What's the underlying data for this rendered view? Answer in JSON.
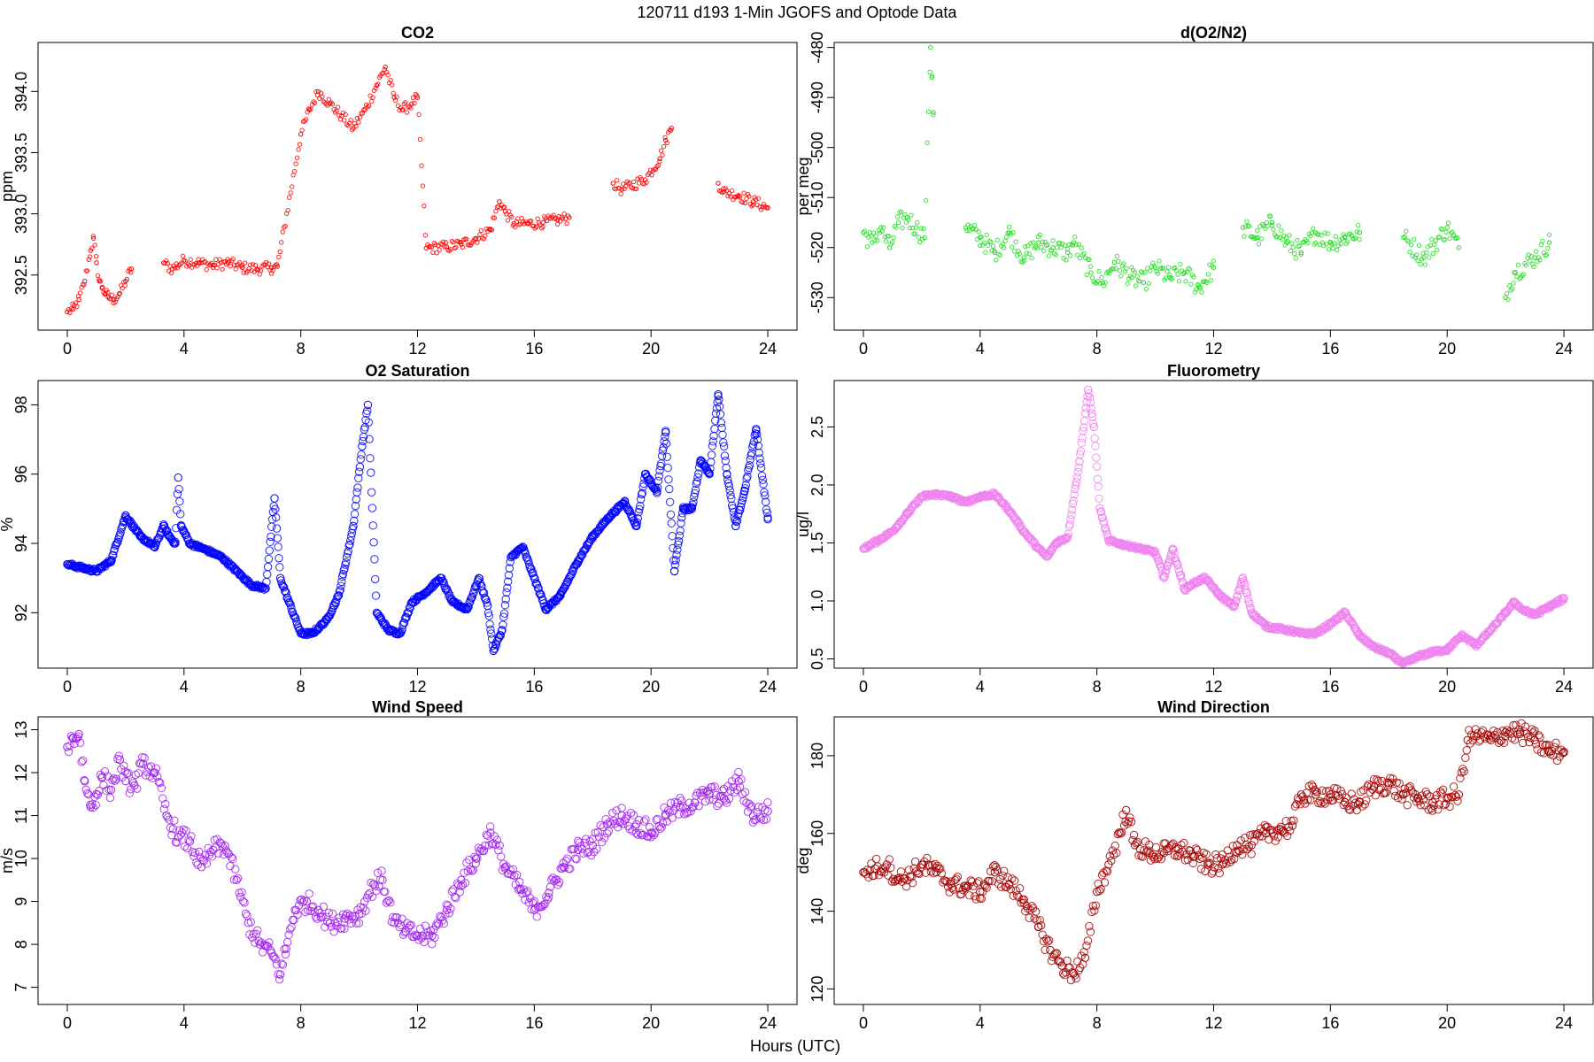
{
  "figure": {
    "title": "120711   d193   1-Min  JGOFS and Optode Data",
    "xlabel": "Hours (UTC)"
  },
  "chart_data": [
    {
      "type": "scatter",
      "title": "CO2",
      "ylabel": "ppm",
      "color": "#ff0000",
      "marker_size": "small",
      "xlim": [
        -1,
        25
      ],
      "ylim": [
        392.05,
        394.4
      ],
      "xticks": [
        0,
        4,
        8,
        12,
        16,
        20,
        24
      ],
      "yticks": [
        392.5,
        393.0,
        393.5,
        394.0
      ],
      "ytick_labels": [
        "392.5",
        "393.0",
        "393.5",
        "394.0"
      ],
      "x": [
        0.0,
        0.2,
        0.4,
        0.6,
        0.8,
        0.9,
        1.0,
        1.1,
        1.2,
        1.3,
        1.4,
        1.6,
        1.8,
        2.0,
        2.2,
        3.3,
        3.6,
        4.0,
        4.5,
        5.0,
        5.5,
        6.0,
        6.5,
        7.0,
        7.2,
        8.0,
        8.3,
        8.6,
        9.0,
        9.4,
        9.8,
        10.2,
        10.6,
        10.9,
        11.2,
        11.5,
        11.8,
        12.0,
        12.3,
        13.0,
        13.5,
        14.0,
        14.5,
        14.8,
        15.0,
        15.3,
        15.8,
        16.3,
        16.8,
        17.2,
        18.7,
        19.0,
        19.8,
        20.3,
        20.5,
        20.7,
        22.3,
        22.5,
        23.0,
        23.5,
        24.0
      ],
      "y": [
        392.2,
        392.22,
        392.3,
        392.45,
        392.7,
        392.8,
        392.6,
        392.45,
        392.4,
        392.35,
        392.32,
        392.3,
        392.35,
        392.45,
        392.55,
        392.6,
        392.55,
        392.62,
        392.6,
        392.58,
        392.6,
        392.56,
        392.55,
        392.56,
        392.57,
        393.65,
        393.85,
        394.0,
        393.9,
        393.8,
        393.7,
        393.85,
        394.05,
        394.2,
        393.95,
        393.85,
        393.9,
        393.95,
        392.72,
        392.73,
        392.75,
        392.8,
        392.87,
        393.1,
        393.02,
        392.92,
        392.92,
        392.93,
        392.95,
        392.97,
        393.25,
        393.2,
        393.28,
        393.45,
        393.6,
        393.7,
        393.25,
        393.18,
        393.15,
        393.1,
        393.05
      ]
    },
    {
      "type": "scatter",
      "title": "d(O2/N2)",
      "ylabel": "per meg",
      "color": "#22dd22",
      "marker_size": "small",
      "xlim": [
        -1,
        25
      ],
      "ylim": [
        -536.5,
        -479
      ],
      "xticks": [
        0,
        4,
        8,
        12,
        16,
        20,
        24
      ],
      "yticks": [
        -480,
        -490,
        -500,
        -510,
        -520,
        -530
      ],
      "ytick_labels": [
        "-480",
        "-490",
        "-500",
        "-510",
        "-520",
        "-530"
      ],
      "x": [
        0.0,
        0.3,
        0.6,
        0.9,
        1.2,
        1.5,
        1.8,
        2.1,
        2.3,
        2.35,
        2.4,
        3.5,
        4.0,
        4.5,
        5.0,
        5.5,
        6.0,
        6.5,
        7.0,
        7.2,
        7.8,
        8.2,
        8.6,
        9.2,
        9.6,
        10.0,
        10.5,
        11.0,
        11.5,
        12.0,
        13.0,
        13.5,
        14.0,
        14.5,
        15.0,
        15.5,
        16.0,
        16.5,
        17.0,
        18.5,
        19.2,
        20.0,
        20.4,
        22.0,
        22.3,
        23.0,
        23.5
      ],
      "y": [
        -517,
        -519,
        -516,
        -520,
        -515,
        -514,
        -516,
        -518,
        -480,
        -486,
        -493,
        -516,
        -518,
        -521,
        -517,
        -522,
        -519,
        -520,
        -521,
        -519,
        -525,
        -527,
        -523,
        -526,
        -527,
        -524,
        -526,
        -525,
        -528,
        -524,
        -516,
        -518,
        -515,
        -519,
        -521,
        -517,
        -519,
        -518,
        -517,
        -518,
        -522,
        -516,
        -520,
        -530,
        -525,
        -522,
        -519
      ]
    },
    {
      "type": "line",
      "title": "O2 Saturation",
      "ylabel": "%",
      "color": "#0000ff",
      "marker_size": "medium",
      "xlim": [
        -1,
        25
      ],
      "ylim": [
        90.4,
        98.7
      ],
      "xticks": [
        0,
        4,
        8,
        12,
        16,
        20,
        24
      ],
      "yticks": [
        92,
        94,
        96,
        98
      ],
      "ytick_labels": [
        "92",
        "94",
        "96",
        "98"
      ],
      "x": [
        0.0,
        0.5,
        1.0,
        1.5,
        2.0,
        2.5,
        3.0,
        3.3,
        3.5,
        3.7,
        3.8,
        3.9,
        4.2,
        4.8,
        5.3,
        5.8,
        6.3,
        6.8,
        7.1,
        7.3,
        7.6,
        8.0,
        8.4,
        8.9,
        9.3,
        9.8,
        10.1,
        10.3,
        10.6,
        11.0,
        11.4,
        11.8,
        12.3,
        12.8,
        13.2,
        13.7,
        14.1,
        14.4,
        14.6,
        14.9,
        15.2,
        15.6,
        16.0,
        16.4,
        16.9,
        17.5,
        18.0,
        18.6,
        19.1,
        19.5,
        19.8,
        20.2,
        20.5,
        20.8,
        21.1,
        21.4,
        21.7,
        22.0,
        22.3,
        22.6,
        22.9,
        23.2,
        23.6,
        24.0
      ],
      "y": [
        93.4,
        93.3,
        93.2,
        93.5,
        94.8,
        94.2,
        93.9,
        94.5,
        94.2,
        94.0,
        95.9,
        94.5,
        94.0,
        93.8,
        93.6,
        93.2,
        92.8,
        92.7,
        95.3,
        93.0,
        92.3,
        91.4,
        91.4,
        91.8,
        92.5,
        94.5,
        96.8,
        98.0,
        92.0,
        91.5,
        91.4,
        92.3,
        92.6,
        93.0,
        92.3,
        92.1,
        93.0,
        92.2,
        90.9,
        91.5,
        93.6,
        93.9,
        93.0,
        92.1,
        92.5,
        93.5,
        94.2,
        94.8,
        95.2,
        94.5,
        96.0,
        95.5,
        97.2,
        93.2,
        95.0,
        95.0,
        96.4,
        96.0,
        98.3,
        96.0,
        94.5,
        95.5,
        97.3,
        94.7
      ]
    },
    {
      "type": "line",
      "title": "Fluorometry",
      "ylabel": "ug/l",
      "color": "#ee82ee",
      "marker_size": "medium",
      "xlim": [
        -1,
        25
      ],
      "ylim": [
        0.42,
        2.9
      ],
      "xticks": [
        0,
        4,
        8,
        12,
        16,
        20,
        24
      ],
      "yticks": [
        0.5,
        1.0,
        1.5,
        2.0,
        2.5
      ],
      "ytick_labels": [
        "0.5",
        "1.0",
        "1.5",
        "2.0",
        "2.5"
      ],
      "x": [
        0.0,
        0.5,
        1.0,
        1.5,
        2.0,
        2.5,
        3.0,
        3.5,
        4.0,
        4.5,
        5.0,
        5.5,
        6.0,
        6.3,
        6.6,
        7.0,
        7.4,
        7.7,
        7.9,
        8.1,
        8.4,
        9.0,
        9.5,
        10.0,
        10.3,
        10.6,
        11.0,
        11.3,
        11.7,
        12.2,
        12.7,
        13.0,
        13.3,
        13.8,
        14.5,
        15.0,
        15.5,
        16.0,
        16.5,
        17.0,
        17.5,
        18.0,
        18.5,
        19.0,
        19.5,
        20.0,
        20.5,
        21.0,
        21.5,
        22.0,
        22.3,
        22.6,
        23.0,
        23.5,
        24.0
      ],
      "y": [
        1.45,
        1.52,
        1.6,
        1.75,
        1.9,
        1.92,
        1.9,
        1.85,
        1.9,
        1.92,
        1.78,
        1.6,
        1.45,
        1.38,
        1.5,
        1.55,
        2.2,
        2.82,
        2.5,
        1.8,
        1.52,
        1.48,
        1.45,
        1.42,
        1.2,
        1.45,
        1.1,
        1.15,
        1.2,
        1.05,
        0.95,
        1.2,
        0.9,
        0.78,
        0.75,
        0.72,
        0.72,
        0.8,
        0.9,
        0.7,
        0.6,
        0.55,
        0.46,
        0.52,
        0.56,
        0.58,
        0.7,
        0.62,
        0.75,
        0.9,
        0.99,
        0.92,
        0.88,
        0.95,
        1.02
      ]
    },
    {
      "type": "scatter",
      "title": "Wind Speed",
      "ylabel": "m/s",
      "color": "#a020f0",
      "marker_size": "medium",
      "xlim": [
        -1,
        25
      ],
      "ylim": [
        6.6,
        13.3
      ],
      "xticks": [
        0,
        4,
        8,
        12,
        16,
        20,
        24
      ],
      "yticks": [
        7,
        8,
        9,
        10,
        11,
        12,
        13
      ],
      "ytick_labels": [
        "7",
        "8",
        "9",
        "10",
        "11",
        "12",
        "13"
      ],
      "x": [
        0.0,
        0.2,
        0.4,
        0.6,
        0.8,
        1.0,
        1.2,
        1.5,
        1.8,
        2.0,
        2.3,
        2.6,
        3.0,
        3.4,
        3.8,
        4.2,
        4.6,
        5.0,
        5.4,
        5.8,
        6.2,
        6.6,
        7.0,
        7.3,
        7.5,
        7.8,
        8.2,
        8.6,
        9.0,
        9.5,
        10.0,
        10.5,
        10.8,
        11.2,
        11.6,
        12.0,
        12.5,
        13.0,
        13.5,
        14.0,
        14.5,
        15.0,
        15.5,
        16.0,
        16.5,
        17.0,
        17.5,
        18.0,
        18.5,
        19.0,
        19.5,
        20.0,
        20.5,
        21.0,
        21.5,
        22.0,
        22.5,
        23.0,
        23.5,
        24.0
      ],
      "y": [
        12.6,
        12.8,
        12.9,
        11.8,
        11.2,
        11.5,
        11.9,
        11.6,
        12.3,
        11.8,
        11.7,
        12.2,
        12.0,
        11.0,
        10.5,
        10.4,
        9.8,
        10.2,
        10.3,
        9.5,
        8.5,
        8.0,
        7.8,
        7.3,
        7.9,
        8.8,
        9.0,
        8.8,
        8.5,
        8.6,
        8.7,
        9.4,
        9.5,
        8.5,
        8.3,
        8.2,
        8.2,
        8.8,
        9.5,
        10.0,
        10.6,
        9.8,
        9.3,
        8.8,
        9.2,
        9.8,
        10.2,
        10.3,
        10.8,
        11.0,
        10.8,
        10.6,
        11.0,
        11.2,
        11.3,
        11.5,
        11.4,
        11.8,
        11.0,
        11.1
      ]
    },
    {
      "type": "scatter",
      "title": "Wind Direction",
      "ylabel": "deg",
      "color": "#a50000",
      "marker_size": "medium",
      "xlim": [
        -1,
        25
      ],
      "ylim": [
        116,
        190
      ],
      "xticks": [
        0,
        4,
        8,
        12,
        16,
        20,
        24
      ],
      "yticks": [
        120,
        140,
        160,
        180
      ],
      "ytick_labels": [
        "120",
        "140",
        "160",
        "180"
      ],
      "x": [
        0.0,
        0.4,
        0.8,
        1.2,
        1.6,
        2.0,
        2.5,
        3.0,
        3.5,
        4.0,
        4.5,
        5.0,
        5.5,
        6.0,
        6.4,
        6.8,
        7.2,
        7.6,
        8.0,
        8.4,
        8.8,
        9.0,
        9.3,
        9.8,
        10.3,
        10.8,
        11.3,
        11.8,
        12.3,
        12.8,
        13.3,
        13.8,
        14.3,
        14.7,
        15.0,
        15.5,
        16.0,
        16.5,
        17.0,
        17.5,
        18.0,
        18.5,
        19.0,
        19.5,
        20.0,
        20.4,
        20.7,
        21.0,
        21.5,
        22.0,
        22.5,
        23.0,
        23.5,
        24.0
      ],
      "y": [
        150,
        151,
        152,
        148,
        149,
        152,
        150,
        147,
        146,
        145,
        150,
        147,
        143,
        136,
        130,
        126,
        124,
        128,
        145,
        152,
        160,
        166,
        157,
        155,
        155,
        156,
        154,
        152,
        152,
        157,
        157,
        160,
        161,
        162,
        170,
        170,
        170,
        168,
        168,
        172,
        173,
        170,
        169,
        168,
        169,
        170,
        184,
        185,
        184,
        186,
        186,
        184,
        181,
        181
      ]
    }
  ]
}
